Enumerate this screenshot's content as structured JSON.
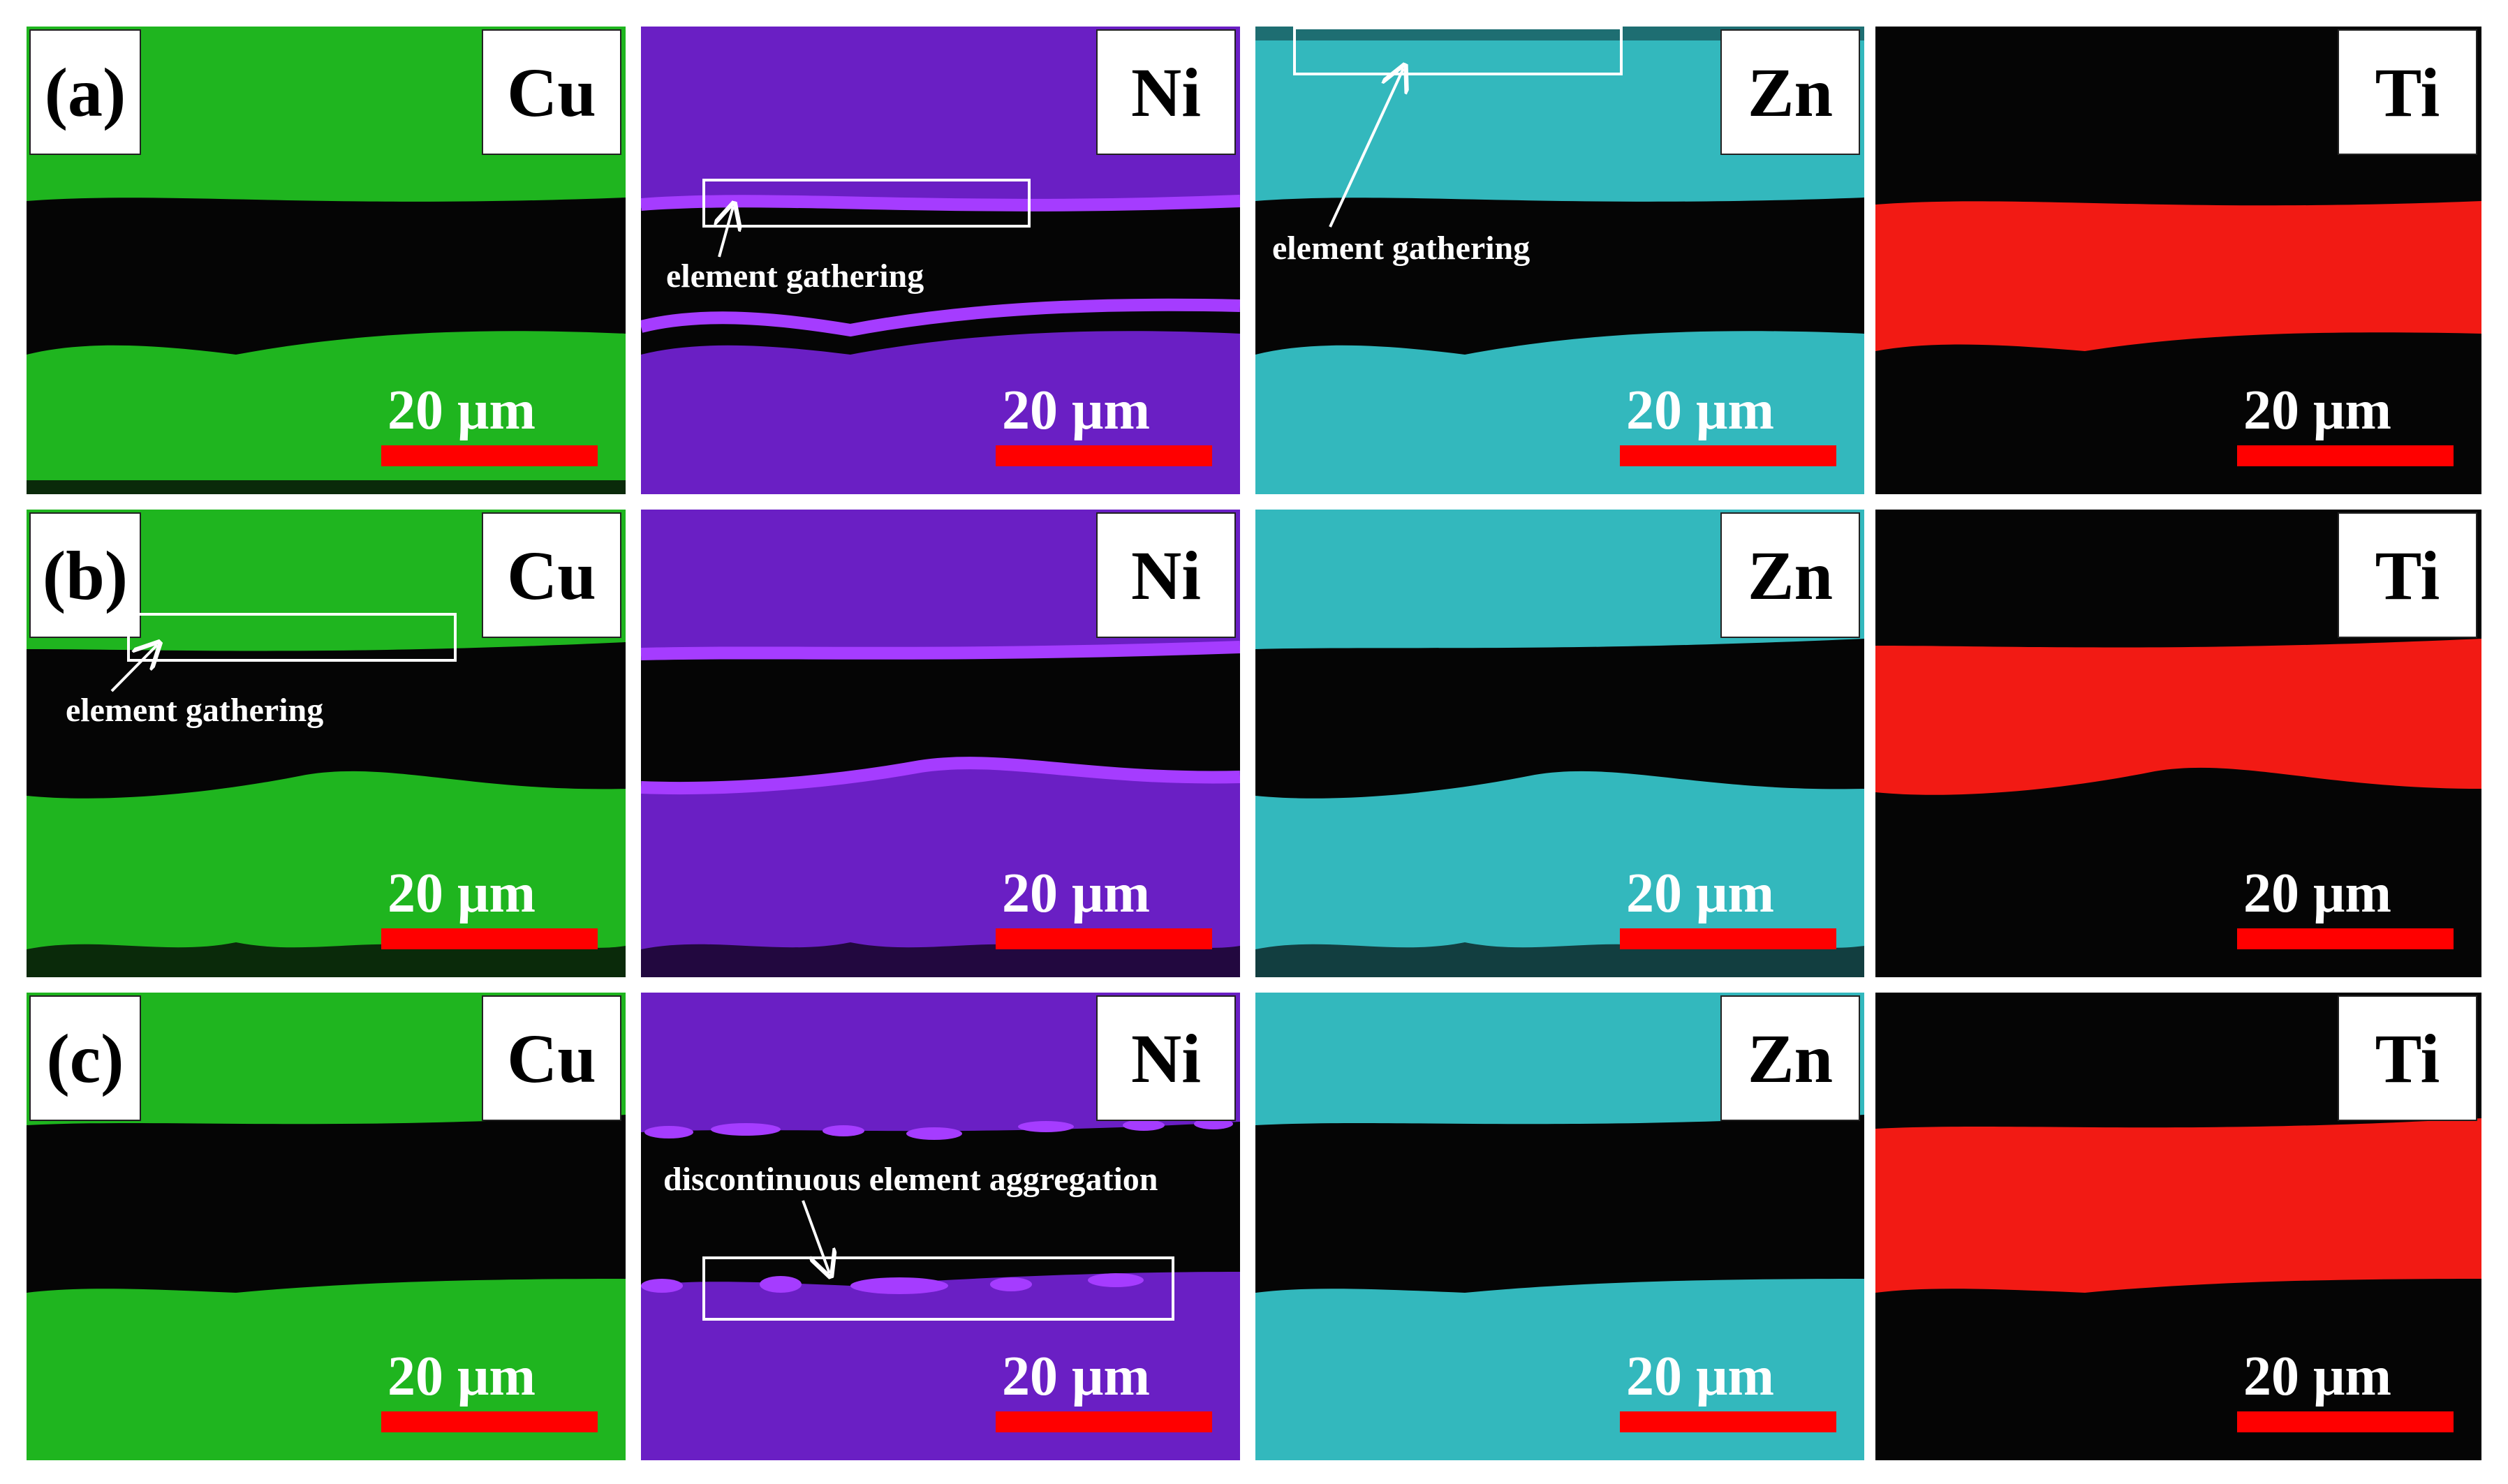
{
  "panel_labels": [
    "(a)",
    "(b)",
    "(c)"
  ],
  "element_labels": [
    "Cu",
    "Ni",
    "Zn",
    "Ti"
  ],
  "scale_bar_label": "20 μm",
  "annotations": {
    "a_ni": "element gathering",
    "a_zn": "element gathering",
    "b_cu": "element gathering",
    "c_ni": "discontinuous element aggregation"
  },
  "colors": {
    "cu": "#1fb51f",
    "ni": "#6a1fc4",
    "ni_bright": "#a53cff",
    "zn": "#33b8bd",
    "ti": "#f21a14",
    "gap": "#050505",
    "scale_bar": "#ff0000"
  }
}
